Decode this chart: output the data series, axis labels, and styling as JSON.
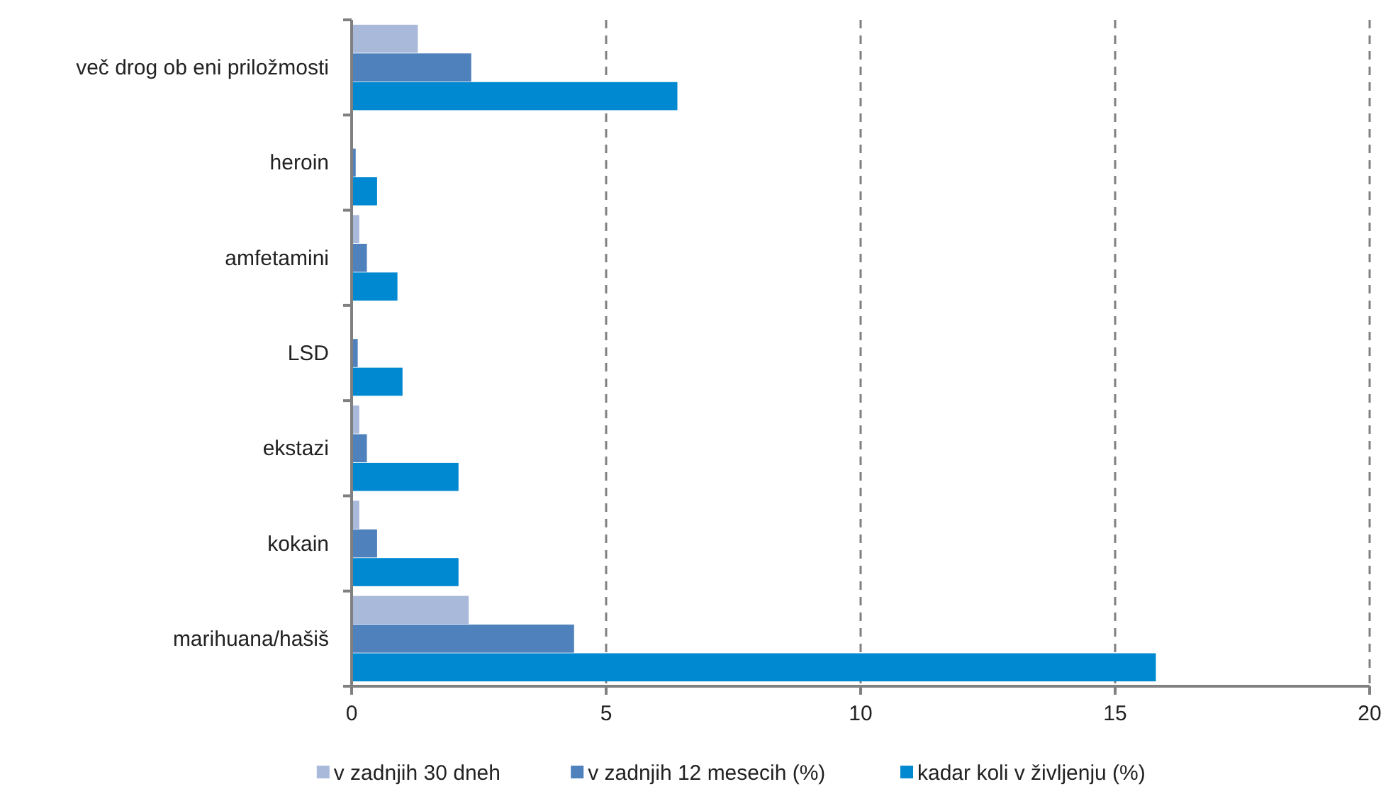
{
  "chart_data": {
    "type": "bar",
    "orientation": "horizontal",
    "categories": [
      "več drog ob eni priložmosti",
      "heroin",
      "amfetamini",
      "LSD",
      "ekstazi",
      "kokain",
      "marihuana/hašiš"
    ],
    "series": [
      {
        "name": "v zadnjih 30 dneh",
        "color": "#a9b9da",
        "values": [
          1.3,
          null,
          0.15,
          null,
          0.15,
          0.15,
          2.3
        ]
      },
      {
        "name": "v zadnjih 12 mesecih (%)",
        "color": "#4f81bd",
        "values": [
          2.35,
          0.08,
          0.3,
          0.12,
          0.3,
          0.5,
          4.37
        ]
      },
      {
        "name": "kadar koli v življenju (%)",
        "color": "#0089d0",
        "values": [
          6.4,
          0.5,
          0.9,
          1.0,
          2.1,
          2.1,
          15.8
        ]
      }
    ],
    "xlim": [
      0,
      20
    ],
    "xticks": [
      0,
      5,
      10,
      15,
      20
    ],
    "grid": "x",
    "legend": "bottom"
  }
}
